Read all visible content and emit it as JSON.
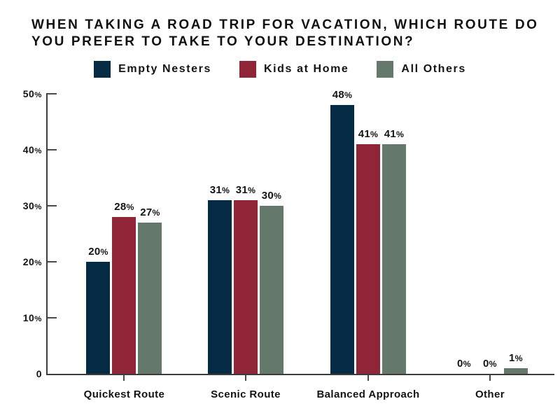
{
  "title": {
    "lines": [
      "WHEN TAKING A ROAD TRIP FOR VACATION, WHICH ROUTE DO",
      "YOU PREFER TO TAKE TO YOUR DESTINATION?"
    ]
  },
  "chart_data": {
    "type": "bar",
    "title": "WHEN TAKING A ROAD TRIP FOR VACATION, WHICH ROUTE DO YOU PREFER TO TAKE TO YOUR DESTINATION?",
    "categories": [
      "Quickest Route",
      "Scenic Route",
      "Balanced Approach",
      "Other"
    ],
    "series": [
      {
        "name": "Empty Nesters",
        "color": "#052A43",
        "values": [
          20,
          31,
          48,
          0
        ]
      },
      {
        "name": "Kids at Home",
        "color": "#8F2537",
        "values": [
          28,
          31,
          41,
          0
        ]
      },
      {
        "name": "All Others",
        "color": "#64786B",
        "values": [
          27,
          30,
          41,
          1
        ]
      }
    ],
    "data_labels": [
      "20%",
      "31%",
      "48%",
      "0%",
      "28%",
      "31%",
      "41%",
      "0%",
      "27%",
      "30%",
      "41%",
      "1%"
    ],
    "xlabel": "",
    "ylabel": "",
    "ylim": [
      0,
      50
    ],
    "y_ticks": [
      0,
      10,
      20,
      30,
      40,
      50
    ],
    "y_tick_labels": [
      "0",
      "10%",
      "20%",
      "30%",
      "40%",
      "50%"
    ],
    "grid": false,
    "legend_position": "top-center",
    "background": "#ffffff",
    "text_color": "#141414",
    "axis_color": "#3c3c3c"
  }
}
